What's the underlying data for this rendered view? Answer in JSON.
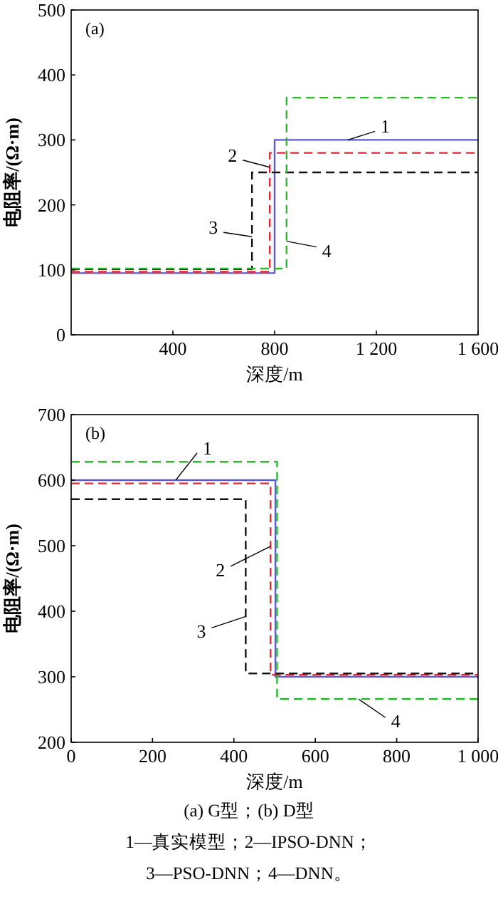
{
  "chart_data": [
    {
      "type": "step",
      "title": "(a)",
      "xlabel": "深度/m",
      "ylabel": "电阻率/(Ω·m)",
      "xlim": [
        0,
        1600
      ],
      "ylim": [
        0,
        500
      ],
      "xticks": [
        400,
        800,
        {
          "value": 1200,
          "label": "1 200"
        },
        {
          "value": 1600,
          "label": "1 600"
        }
      ],
      "yticks": [
        0,
        100,
        200,
        300,
        400,
        500
      ],
      "series": [
        {
          "color": "#5a5ad2",
          "line_style": "solid",
          "x": [
            0,
            800,
            1600
          ],
          "values": [
            95,
            300,
            300
          ]
        },
        {
          "color": "#e8262e",
          "line_style": "dashed",
          "x": [
            0,
            781,
            1600
          ],
          "values": [
            97,
            280,
            280
          ]
        },
        {
          "color": "#111111",
          "line_style": "dashed",
          "x": [
            0,
            711,
            1600
          ],
          "values": [
            101,
            250,
            250
          ]
        },
        {
          "color": "#2cb82c",
          "line_style": "dashed",
          "x": [
            0,
            847,
            1600
          ],
          "values": [
            102,
            365,
            365
          ]
        }
      ],
      "annotations": [
        {
          "text": "1",
          "x": 1088,
          "y": 300
        },
        {
          "text": "2",
          "x": 781,
          "y": 258
        },
        {
          "text": "3",
          "x": 711,
          "y": 151
        },
        {
          "text": "4",
          "x": 847,
          "y": 144
        }
      ]
    },
    {
      "type": "step",
      "title": "(b)",
      "xlabel": "深度/m",
      "ylabel": "电阻率/(Ω·m)",
      "xlim": [
        0,
        1000
      ],
      "ylim": [
        200,
        700
      ],
      "xticks": [
        0,
        200,
        400,
        600,
        800,
        {
          "value": 1000,
          "label": "1 000"
        }
      ],
      "yticks": [
        200,
        300,
        400,
        500,
        600,
        700
      ],
      "series": [
        {
          "color": "#5a5ad2",
          "line_style": "solid",
          "x": [
            0,
            502,
            1000
          ],
          "values": [
            600,
            300,
            300
          ]
        },
        {
          "color": "#e8262e",
          "line_style": "dashed",
          "x": [
            0,
            490,
            1000
          ],
          "values": [
            595,
            303,
            303
          ]
        },
        {
          "color": "#111111",
          "line_style": "dashed",
          "x": [
            0,
            429,
            1000
          ],
          "values": [
            571,
            305,
            305
          ]
        },
        {
          "color": "#2cb82c",
          "line_style": "dashed",
          "x": [
            0,
            506,
            1000
          ],
          "values": [
            628,
            266,
            266
          ]
        }
      ],
      "annotations": [
        {
          "text": "1",
          "x": 257,
          "y": 600
        },
        {
          "text": "2",
          "x": 490,
          "y": 499
        },
        {
          "text": "3",
          "x": 429,
          "y": 392
        },
        {
          "text": "4",
          "x": 706,
          "y": 266
        },
        "(a) G型；(b) D型",
        "1—真实模型；2—IPSO-DNN；",
        "3—PSO-DNN；4—DNN。"
      ]
    }
  ]
}
